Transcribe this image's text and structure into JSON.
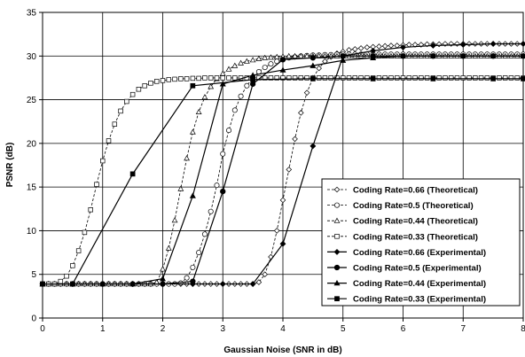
{
  "chart_data": {
    "type": "line",
    "title": "",
    "xlabel": "Gaussian Noise (SNR in dB)",
    "ylabel": "PSNR (dB)",
    "xlim": [
      0,
      8
    ],
    "ylim": [
      0,
      35
    ],
    "x_ticks": [
      "0",
      "1",
      "2",
      "3",
      "4",
      "5",
      "6",
      "7",
      "8"
    ],
    "y_ticks": [
      "0",
      "5",
      "10",
      "15",
      "20",
      "25",
      "30",
      "35"
    ],
    "grid": true,
    "legend_position": "lower-right",
    "series": [
      {
        "name": "Coding Rate=0.66 (Theoretical)",
        "marker": "diamond-open",
        "line": "dashed",
        "x": [
          0,
          0.1,
          0.2,
          0.3,
          0.4,
          0.5,
          0.6,
          0.7,
          0.8,
          0.9,
          1.0,
          1.1,
          1.2,
          1.3,
          1.4,
          1.5,
          1.6,
          1.7,
          1.8,
          1.9,
          2.0,
          2.1,
          2.2,
          2.3,
          2.4,
          2.5,
          2.6,
          2.7,
          2.8,
          2.9,
          3.0,
          3.1,
          3.2,
          3.3,
          3.4,
          3.5,
          3.6,
          3.7,
          3.8,
          3.9,
          4.0,
          4.1,
          4.2,
          4.3,
          4.4,
          4.5,
          4.6,
          4.7,
          4.8,
          4.9,
          5.0,
          5.1,
          5.2,
          5.3,
          5.4,
          5.5,
          5.6,
          5.7,
          5.8,
          5.9,
          6.0,
          6.1,
          6.2,
          6.3,
          6.4,
          6.5,
          6.6,
          6.7,
          6.8,
          6.9,
          7.0,
          7.1,
          7.2,
          7.3,
          7.4,
          7.5,
          7.6,
          7.7,
          7.8,
          7.9,
          8.0
        ],
        "values": [
          3.9,
          3.9,
          3.9,
          3.9,
          3.9,
          3.9,
          3.9,
          3.9,
          3.9,
          3.9,
          3.9,
          3.9,
          3.9,
          3.9,
          3.9,
          3.9,
          3.9,
          3.9,
          3.9,
          3.9,
          3.9,
          3.9,
          3.9,
          3.9,
          3.9,
          3.9,
          3.9,
          3.9,
          3.9,
          3.9,
          3.9,
          3.9,
          3.9,
          3.9,
          3.9,
          3.9,
          4.1,
          5.0,
          7.0,
          10.0,
          13.5,
          17.0,
          20.5,
          23.5,
          25.8,
          27.5,
          28.6,
          29.4,
          29.9,
          30.3,
          30.5,
          30.7,
          30.8,
          30.9,
          31.0,
          31.05,
          31.1,
          31.15,
          31.2,
          31.2,
          31.25,
          31.3,
          31.3,
          31.3,
          31.35,
          31.35,
          31.35,
          31.4,
          31.4,
          31.4,
          31.4,
          31.4,
          31.4,
          31.4,
          31.4,
          31.4,
          31.4,
          31.4,
          31.4,
          31.4,
          31.4
        ]
      },
      {
        "name": "Coding Rate=0.5 (Theoretical)",
        "marker": "circle-open",
        "line": "dashed",
        "x": [
          0,
          0.1,
          0.2,
          0.3,
          0.4,
          0.5,
          0.6,
          0.7,
          0.8,
          0.9,
          1.0,
          1.1,
          1.2,
          1.3,
          1.4,
          1.5,
          1.6,
          1.7,
          1.8,
          1.9,
          2.0,
          2.1,
          2.2,
          2.3,
          2.4,
          2.5,
          2.6,
          2.7,
          2.8,
          2.9,
          3.0,
          3.1,
          3.2,
          3.3,
          3.4,
          3.5,
          3.6,
          3.7,
          3.8,
          3.9,
          4.0,
          4.1,
          4.2,
          4.3,
          4.4,
          4.5,
          4.6,
          4.7,
          4.8,
          4.9,
          5.0,
          5.1,
          5.2,
          5.3,
          5.4,
          5.5,
          5.6,
          5.7,
          5.8,
          5.9,
          6.0,
          6.1,
          6.2,
          6.3,
          6.4,
          6.5,
          6.6,
          6.7,
          6.8,
          6.9,
          7.0,
          7.1,
          7.2,
          7.3,
          7.4,
          7.5,
          7.6,
          7.7,
          7.8,
          7.9,
          8.0
        ],
        "values": [
          3.9,
          3.9,
          3.9,
          3.9,
          3.9,
          3.9,
          3.9,
          3.9,
          3.9,
          3.9,
          3.9,
          3.9,
          3.9,
          3.9,
          3.9,
          3.9,
          3.9,
          3.9,
          3.9,
          3.9,
          3.9,
          3.9,
          3.9,
          4.0,
          4.6,
          5.8,
          7.5,
          9.6,
          12.2,
          15.2,
          18.8,
          21.5,
          23.8,
          25.4,
          26.6,
          27.5,
          28.2,
          28.7,
          29.1,
          29.4,
          29.6,
          29.8,
          29.9,
          30.0,
          30.05,
          30.1,
          30.1,
          30.15,
          30.15,
          30.2,
          30.2,
          30.2,
          30.2,
          30.2,
          30.2,
          30.2,
          30.2,
          30.2,
          30.2,
          30.2,
          30.2,
          30.2,
          30.2,
          30.2,
          30.2,
          30.2,
          30.2,
          30.2,
          30.2,
          30.2,
          30.2,
          30.2,
          30.2,
          30.2,
          30.2,
          30.2,
          30.2,
          30.2,
          30.2,
          30.2,
          30.2
        ]
      },
      {
        "name": "Coding Rate=0.44 (Theoretical)",
        "marker": "triangle-open",
        "line": "dashed",
        "x": [
          0,
          0.1,
          0.2,
          0.3,
          0.4,
          0.5,
          0.6,
          0.7,
          0.8,
          0.9,
          1.0,
          1.1,
          1.2,
          1.3,
          1.4,
          1.5,
          1.6,
          1.7,
          1.8,
          1.9,
          2.0,
          2.1,
          2.2,
          2.3,
          2.4,
          2.5,
          2.6,
          2.7,
          2.8,
          2.9,
          3.0,
          3.1,
          3.2,
          3.3,
          3.4,
          3.5,
          3.6,
          3.7,
          3.8,
          3.9,
          4.0,
          4.1,
          4.2,
          4.3,
          4.4,
          4.5,
          4.6,
          4.7,
          4.8,
          4.9,
          5.0,
          5.1,
          5.2,
          5.3,
          5.4,
          5.5,
          5.6,
          5.7,
          5.8,
          5.9,
          6.0,
          6.1,
          6.2,
          6.3,
          6.4,
          6.5,
          6.6,
          6.7,
          6.8,
          6.9,
          7.0,
          7.1,
          7.2,
          7.3,
          7.4,
          7.5,
          7.6,
          7.7,
          7.8,
          7.9,
          8.0
        ],
        "values": [
          3.9,
          3.9,
          3.9,
          3.9,
          3.9,
          3.9,
          3.9,
          3.9,
          3.9,
          3.9,
          3.9,
          3.9,
          3.9,
          3.9,
          3.9,
          3.9,
          3.9,
          3.9,
          3.9,
          4.1,
          5.6,
          8.0,
          11.2,
          14.8,
          18.3,
          21.3,
          23.6,
          25.3,
          26.5,
          27.4,
          28.0,
          28.5,
          28.9,
          29.2,
          29.4,
          29.55,
          29.7,
          29.8,
          29.85,
          29.9,
          29.95,
          30.0,
          30.0,
          30.0,
          30.0,
          30.0,
          30.0,
          30.0,
          30.0,
          30.0,
          30.0,
          30.0,
          30.0,
          30.0,
          30.0,
          30.0,
          30.0,
          30.0,
          30.0,
          30.0,
          30.0,
          30.0,
          30.0,
          30.0,
          30.0,
          30.0,
          30.0,
          30.0,
          30.0,
          30.0,
          30.0,
          30.0,
          30.0,
          30.0,
          30.0,
          30.0,
          30.0,
          30.0,
          30.0,
          30.0,
          30.0
        ]
      },
      {
        "name": "Coding Rate=0.33 (Theoretical)",
        "marker": "square-open",
        "line": "dashed",
        "x": [
          0,
          0.1,
          0.2,
          0.3,
          0.4,
          0.5,
          0.6,
          0.7,
          0.8,
          0.9,
          1.0,
          1.1,
          1.2,
          1.3,
          1.4,
          1.5,
          1.6,
          1.7,
          1.8,
          1.9,
          2.0,
          2.1,
          2.2,
          2.3,
          2.4,
          2.5,
          2.6,
          2.7,
          2.8,
          2.9,
          3.0,
          3.1,
          3.2,
          3.3,
          3.4,
          3.5,
          3.6,
          3.7,
          3.8,
          3.9,
          4.0,
          4.1,
          4.2,
          4.3,
          4.4,
          4.5,
          4.6,
          4.7,
          4.8,
          4.9,
          5.0,
          5.1,
          5.2,
          5.3,
          5.4,
          5.5,
          5.6,
          5.7,
          5.8,
          5.9,
          6.0,
          6.1,
          6.2,
          6.3,
          6.4,
          6.5,
          6.6,
          6.7,
          6.8,
          6.9,
          7.0,
          7.1,
          7.2,
          7.3,
          7.4,
          7.5,
          7.6,
          7.7,
          7.8,
          7.9,
          8.0
        ],
        "values": [
          3.9,
          3.9,
          3.9,
          4.2,
          4.8,
          6.0,
          7.7,
          9.8,
          12.4,
          15.3,
          18.0,
          20.3,
          22.2,
          23.7,
          24.8,
          25.6,
          26.2,
          26.6,
          26.9,
          27.1,
          27.2,
          27.3,
          27.35,
          27.4,
          27.4,
          27.45,
          27.45,
          27.5,
          27.5,
          27.5,
          27.5,
          27.5,
          27.5,
          27.5,
          27.5,
          27.5,
          27.5,
          27.5,
          27.5,
          27.5,
          27.5,
          27.5,
          27.5,
          27.5,
          27.5,
          27.5,
          27.5,
          27.5,
          27.5,
          27.5,
          27.5,
          27.5,
          27.5,
          27.5,
          27.5,
          27.5,
          27.5,
          27.5,
          27.5,
          27.5,
          27.5,
          27.5,
          27.5,
          27.5,
          27.5,
          27.5,
          27.5,
          27.5,
          27.5,
          27.5,
          27.5,
          27.5,
          27.5,
          27.5,
          27.5,
          27.5,
          27.5,
          27.5,
          27.5,
          27.5,
          27.5
        ]
      },
      {
        "name": "Coding Rate=0.66 (Experimental)",
        "marker": "diamond-filled",
        "line": "solid",
        "x": [
          0,
          0.5,
          1.0,
          1.5,
          2.0,
          2.5,
          3.0,
          3.5,
          4.0,
          4.5,
          5.0,
          5.5,
          6.0,
          6.5,
          7.0,
          7.5,
          8.0
        ],
        "values": [
          3.9,
          3.9,
          3.9,
          3.9,
          3.9,
          3.9,
          3.9,
          3.9,
          8.5,
          19.7,
          30.0,
          30.6,
          31.0,
          31.2,
          31.3,
          31.4,
          31.4
        ]
      },
      {
        "name": "Coding Rate=0.5 (Experimental)",
        "marker": "circle-filled",
        "line": "solid",
        "x": [
          0,
          0.5,
          1.0,
          1.5,
          2.0,
          2.5,
          3.0,
          3.5,
          4.0,
          4.5,
          5.0,
          5.5,
          6.0,
          6.5,
          7.0,
          7.5,
          8.0
        ],
        "values": [
          3.9,
          3.9,
          3.9,
          3.9,
          3.9,
          4.2,
          14.5,
          26.8,
          29.6,
          29.8,
          30.0,
          30.0,
          30.0,
          30.0,
          30.0,
          30.0,
          30.0
        ]
      },
      {
        "name": "Coding Rate=0.44 (Experimental)",
        "marker": "triangle-filled",
        "line": "solid",
        "x": [
          0,
          0.5,
          1.0,
          1.5,
          2.0,
          2.5,
          3.0,
          3.5,
          4.0,
          4.5,
          5.0,
          5.5,
          6.0,
          6.5,
          7.0,
          7.5,
          8.0
        ],
        "values": [
          3.9,
          3.9,
          3.9,
          3.9,
          4.5,
          14.0,
          26.8,
          27.8,
          28.4,
          28.9,
          29.5,
          29.8,
          30.0,
          30.0,
          30.0,
          30.0,
          30.0
        ]
      },
      {
        "name": "Coding Rate=0.33 (Experimental)",
        "marker": "square-filled",
        "line": "solid",
        "x": [
          0,
          0.5,
          1.5,
          2.5,
          3.5,
          4.5,
          5.5,
          6.5,
          7.5,
          8.0
        ],
        "values": [
          3.9,
          3.9,
          16.5,
          26.6,
          27.3,
          27.4,
          27.4,
          27.4,
          27.4,
          27.4
        ]
      }
    ]
  }
}
